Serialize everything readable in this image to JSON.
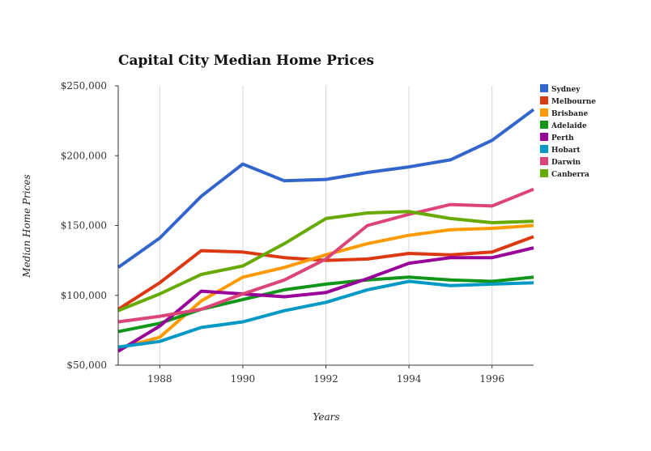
{
  "chart_data": {
    "type": "line",
    "title": "Capital City Median Home Prices",
    "xlabel": "Years",
    "ylabel": "Median Home Prices",
    "x": [
      1987,
      1988,
      1989,
      1990,
      1991,
      1992,
      1993,
      1994,
      1995,
      1996,
      1997
    ],
    "xlim": [
      1987,
      1997
    ],
    "ylim": [
      50000,
      250000
    ],
    "x_ticks": [
      1988,
      1990,
      1992,
      1994,
      1996
    ],
    "x_tick_labels": [
      "1988",
      "1990",
      "1992",
      "1994",
      "1996"
    ],
    "y_ticks": [
      50000,
      100000,
      150000,
      200000,
      250000
    ],
    "y_tick_labels": [
      "$50,000",
      "$100,000",
      "$150,000",
      "$200,000",
      "$250,000"
    ],
    "grid": "vertical",
    "legend_position": "right",
    "series": [
      {
        "name": "Sydney",
        "color": "#3366cc",
        "values": [
          120000,
          141000,
          171000,
          194000,
          182000,
          183000,
          188000,
          192000,
          197000,
          211000,
          233000
        ]
      },
      {
        "name": "Melbourne",
        "color": "#dc3912",
        "values": [
          90000,
          109000,
          132000,
          131000,
          127000,
          125000,
          126000,
          130000,
          129000,
          131000,
          142000
        ]
      },
      {
        "name": "Brisbane",
        "color": "#ff9900",
        "values": [
          62000,
          70000,
          96000,
          113000,
          120000,
          129000,
          137000,
          143000,
          147000,
          148000,
          150000
        ]
      },
      {
        "name": "Adelaide",
        "color": "#109618",
        "values": [
          74000,
          80000,
          90000,
          97000,
          104000,
          108000,
          111000,
          113000,
          111000,
          110000,
          113000
        ]
      },
      {
        "name": "Perth",
        "color": "#990099",
        "values": [
          60000,
          78000,
          103000,
          101000,
          99000,
          102000,
          112000,
          123000,
          127000,
          127000,
          134000
        ]
      },
      {
        "name": "Hobart",
        "color": "#0099c6",
        "values": [
          63000,
          67000,
          77000,
          81000,
          89000,
          95000,
          104000,
          110000,
          107000,
          108000,
          109000
        ]
      },
      {
        "name": "Darwin",
        "color": "#dd4477",
        "values": [
          81000,
          85000,
          90000,
          101000,
          111000,
          126000,
          150000,
          158000,
          165000,
          164000,
          176000
        ]
      },
      {
        "name": "Canberra",
        "color": "#66aa00",
        "values": [
          89000,
          101000,
          115000,
          121000,
          137000,
          155000,
          159000,
          160000,
          155000,
          152000,
          153000
        ]
      }
    ]
  }
}
